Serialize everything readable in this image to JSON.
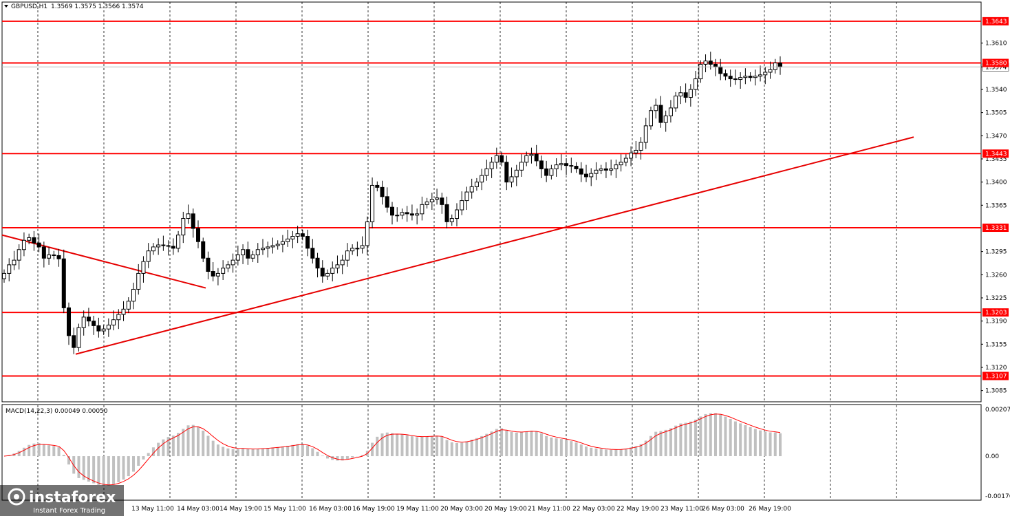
{
  "chart_data": {
    "type": "candlestick",
    "symbol_header": {
      "symbol": "GBPUSD,H1",
      "ohlc": "1.3569 1.3575 1.3566 1.3574"
    },
    "price_ticks": [
      "1.3610",
      "1.3574",
      "1.3540",
      "1.3505",
      "1.3470",
      "1.3435",
      "1.3400",
      "1.3365",
      "1.3295",
      "1.3260",
      "1.3225",
      "1.3190",
      "1.3155",
      "1.3120",
      "1.3085"
    ],
    "current_price": "1.3574",
    "price_range": [
      1.3068,
      1.3672
    ],
    "levels": [
      {
        "value": 1.3643,
        "label": "1.3643"
      },
      {
        "value": 1.358,
        "label": "1.3580"
      },
      {
        "value": 1.3443,
        "label": "1.3443"
      },
      {
        "value": 1.3331,
        "label": "1.3331"
      },
      {
        "value": 1.3203,
        "label": "1.3203"
      },
      {
        "value": 1.3107,
        "label": "1.3107"
      }
    ],
    "time_labels": [
      "13 May 11:00",
      "14 May 03:00",
      "14 May 19:00",
      "15 May 11:00",
      "16 May 03:00",
      "16 May 19:00",
      "19 May 11:00",
      "20 May 03:00",
      "20 May 19:00",
      "21 May 11:00",
      "22 May 03:00",
      "22 May 19:00",
      "23 May 11:00",
      "26 May 03:00",
      "26 May 19:00"
    ],
    "closes": [
      1.3262,
      1.3275,
      1.3282,
      1.3298,
      1.3312,
      1.3316,
      1.3308,
      1.3302,
      1.3285,
      1.329,
      1.3289,
      1.3284,
      1.321,
      1.3168,
      1.315,
      1.318,
      1.3196,
      1.319,
      1.3183,
      1.3175,
      1.3178,
      1.3184,
      1.3192,
      1.32,
      1.3208,
      1.322,
      1.3238,
      1.3262,
      1.328,
      1.3296,
      1.3302,
      1.3305,
      1.3304,
      1.3303,
      1.33,
      1.332,
      1.3345,
      1.3352,
      1.333,
      1.331,
      1.3285,
      1.3265,
      1.3258,
      1.3262,
      1.327,
      1.3275,
      1.3282,
      1.329,
      1.3298,
      1.3285,
      1.329,
      1.3298,
      1.33,
      1.3302,
      1.3304,
      1.3306,
      1.331,
      1.3314,
      1.3318,
      1.3322,
      1.3318,
      1.33,
      1.3285,
      1.327,
      1.3258,
      1.3262,
      1.327,
      1.3275,
      1.3282,
      1.3296,
      1.33,
      1.33,
      1.3304,
      1.334,
      1.3395,
      1.3392,
      1.3378,
      1.3362,
      1.335,
      1.335,
      1.3354,
      1.3352,
      1.335,
      1.3352,
      1.3366,
      1.337,
      1.3374,
      1.3376,
      1.3366,
      1.334,
      1.3345,
      1.3358,
      1.3372,
      1.3385,
      1.3393,
      1.34,
      1.341,
      1.342,
      1.343,
      1.344,
      1.343,
      1.34,
      1.3408,
      1.3418,
      1.343,
      1.344,
      1.3442,
      1.3432,
      1.342,
      1.341,
      1.342,
      1.3426,
      1.3428,
      1.3425,
      1.3424,
      1.342,
      1.3412,
      1.3408,
      1.3413,
      1.3418,
      1.342,
      1.3418,
      1.342,
      1.3426,
      1.343,
      1.3436,
      1.3444,
      1.3448,
      1.346,
      1.3485,
      1.3508,
      1.3516,
      1.349,
      1.35,
      1.3512,
      1.353,
      1.3535,
      1.3528,
      1.354,
      1.3556,
      1.3578,
      1.3583,
      1.3578,
      1.3574,
      1.3564,
      1.356,
      1.3556,
      1.3555,
      1.3558,
      1.356,
      1.3558,
      1.356,
      1.3562,
      1.3566,
      1.357,
      1.358,
      1.3574
    ],
    "macd_label": "MACD(14,22,3) 0.00049 0.00050",
    "macd_ticks": [
      "0.00207",
      "0.00",
      "-0.00176"
    ],
    "macd_range": [
      -0.00176,
      0.00207
    ]
  },
  "watermark": {
    "brand": "instaforex",
    "tagline": "Instant Forex Trading"
  },
  "colors": {
    "level": "#ff0000",
    "trend": "#e60000",
    "candle": "#000000",
    "macd_hist": "#c0c0c0",
    "macd_signal": "#ff0000",
    "grid": "#000000"
  }
}
